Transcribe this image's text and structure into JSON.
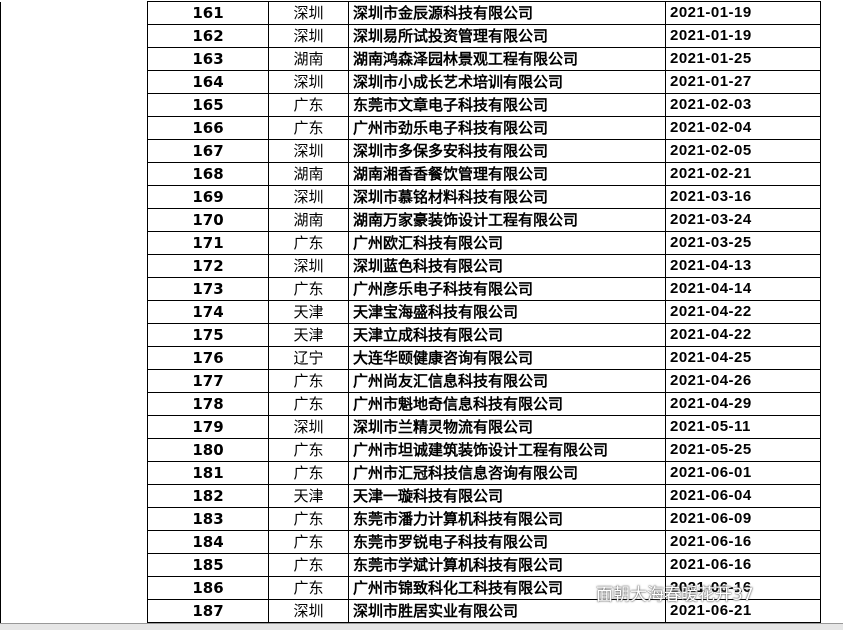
{
  "table": {
    "rows": [
      [
        "161",
        "深圳",
        "深圳市金辰源科技有限公司",
        "2021-01-19"
      ],
      [
        "162",
        "深圳",
        "深圳易所试投资管理有限公司",
        "2021-01-19"
      ],
      [
        "163",
        "湖南",
        "湖南鸿森泽园林景观工程有限公司",
        "2021-01-25"
      ],
      [
        "164",
        "深圳",
        "深圳市小成长艺术培训有限公司",
        "2021-01-27"
      ],
      [
        "165",
        "广东",
        "东莞市文章电子科技有限公司",
        "2021-02-03"
      ],
      [
        "166",
        "广东",
        "广州市劲乐电子科技有限公司",
        "2021-02-04"
      ],
      [
        "167",
        "深圳",
        "深圳市多保多安科技有限公司",
        "2021-02-05"
      ],
      [
        "168",
        "湖南",
        "湖南湘香香餐饮管理有限公司",
        "2021-02-21"
      ],
      [
        "169",
        "深圳",
        "深圳市慕铭材料科技有限公司",
        "2021-03-16"
      ],
      [
        "170",
        "湖南",
        "湖南万家豪装饰设计工程有限公司",
        "2021-03-24"
      ],
      [
        "171",
        "广东",
        "广州欧汇科技有限公司",
        "2021-03-25"
      ],
      [
        "172",
        "深圳",
        "深圳蓝色科技有限公司",
        "2021-04-13"
      ],
      [
        "173",
        "广东",
        "广州彦乐电子科技有限公司",
        "2021-04-14"
      ],
      [
        "174",
        "天津",
        "天津宝海盛科技有限公司",
        "2021-04-22"
      ],
      [
        "175",
        "天津",
        "天津立成科技有限公司",
        "2021-04-22"
      ],
      [
        "176",
        "辽宁",
        "大连华颐健康咨询有限公司",
        "2021-04-25"
      ],
      [
        "177",
        "广东",
        "广州尚友汇信息科技有限公司",
        "2021-04-26"
      ],
      [
        "178",
        "广东",
        "广州市魁地奇信息科技有限公司",
        "2021-04-29"
      ],
      [
        "179",
        "深圳",
        "深圳市兰精灵物流有限公司",
        "2021-05-11"
      ],
      [
        "180",
        "广东",
        "广州市坦诚建筑装饰设计工程有限公司",
        "2021-05-25"
      ],
      [
        "181",
        "广东",
        "广州市汇冠科技信息咨询有限公司",
        "2021-06-01"
      ],
      [
        "182",
        "天津",
        "天津一璇科技有限公司",
        "2021-06-04"
      ],
      [
        "183",
        "广东",
        "东莞市潘力计算机科技有限公司",
        "2021-06-09"
      ],
      [
        "184",
        "广东",
        "东莞市罗锐电子科技有限公司",
        "2021-06-16"
      ],
      [
        "185",
        "广东",
        "东莞市学斌计算机科技有限公司",
        "2021-06-16"
      ],
      [
        "186",
        "广东",
        "广州市锦致科化工科技有限公司",
        "2021-06-16"
      ],
      [
        "187",
        "深圳",
        "深圳市胜居实业有限公司",
        "2021-06-21"
      ]
    ]
  },
  "watermark": "面朝大海春暖花开37"
}
